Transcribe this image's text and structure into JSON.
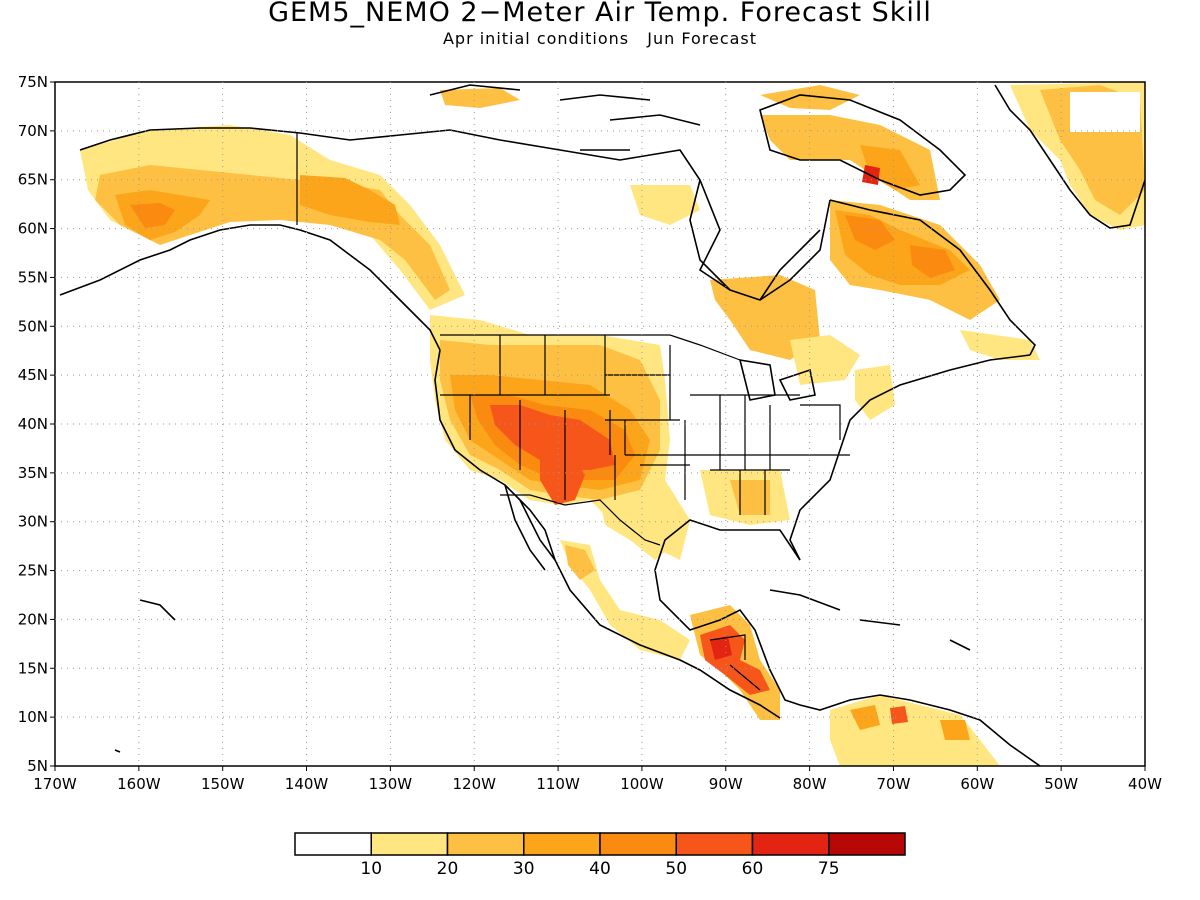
{
  "title": "GEM5_NEMO 2−Meter Air Temp. Forecast Skill",
  "subtitle": {
    "init": "Apr initial conditions",
    "forecast": "Jun Forecast"
  },
  "axes": {
    "lat_labels": [
      "75N",
      "70N",
      "65N",
      "60N",
      "55N",
      "50N",
      "45N",
      "40N",
      "35N",
      "30N",
      "25N",
      "20N",
      "15N",
      "10N",
      "5N"
    ],
    "lon_labels": [
      "170W",
      "160W",
      "150W",
      "140W",
      "130W",
      "120W",
      "110W",
      "100W",
      "90W",
      "80W",
      "70W",
      "60W",
      "50W",
      "40W"
    ],
    "lat_range": [
      5,
      75
    ],
    "lon_range": [
      -170,
      -40
    ],
    "grid": "dotted"
  },
  "colorbar": {
    "labels": [
      "10",
      "20",
      "30",
      "40",
      "50",
      "60",
      "75"
    ],
    "colors": [
      "#ffffff",
      "#ffe680",
      "#fdc043",
      "#fca51a",
      "#fb8a10",
      "#f6561a",
      "#e42412",
      "#b80707"
    ]
  },
  "map_colors": {
    "c1": "#ffe680",
    "c2": "#fdc043",
    "c3": "#fca51a",
    "c4": "#fb8a10",
    "c5": "#f6561a",
    "c6": "#e42412"
  }
}
